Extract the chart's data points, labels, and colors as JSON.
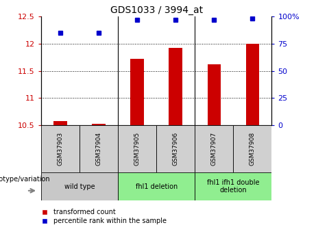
{
  "title": "GDS1033 / 3994_at",
  "samples": [
    "GSM37903",
    "GSM37904",
    "GSM37905",
    "GSM37906",
    "GSM37907",
    "GSM37908"
  ],
  "transformed_counts": [
    10.58,
    10.52,
    11.72,
    11.92,
    11.62,
    12.0
  ],
  "percentile_ranks": [
    85,
    85,
    97,
    97,
    97,
    98
  ],
  "ylim_left": [
    10.5,
    12.5
  ],
  "ylim_right": [
    0,
    100
  ],
  "yticks_left": [
    10.5,
    11.0,
    11.5,
    12.0,
    12.5
  ],
  "yticks_right": [
    0,
    25,
    50,
    75,
    100
  ],
  "ytick_labels_left": [
    "10.5",
    "11",
    "11.5",
    "12",
    "12.5"
  ],
  "ytick_labels_right": [
    "0",
    "25",
    "50",
    "75",
    "100%"
  ],
  "groups": [
    {
      "label": "wild type",
      "indices": [
        0,
        1
      ],
      "color": "#c8c8c8"
    },
    {
      "label": "fhl1 deletion",
      "indices": [
        2,
        3
      ],
      "color": "#90ee90"
    },
    {
      "label": "fhl1 ifh1 double\ndeletion",
      "indices": [
        4,
        5
      ],
      "color": "#90ee90"
    }
  ],
  "bar_color": "#cc0000",
  "dot_color": "#0000cc",
  "bar_width": 0.35,
  "legend_label_red": "transformed count",
  "legend_label_blue": "percentile rank within the sample",
  "genotype_label": "genotype/variation"
}
